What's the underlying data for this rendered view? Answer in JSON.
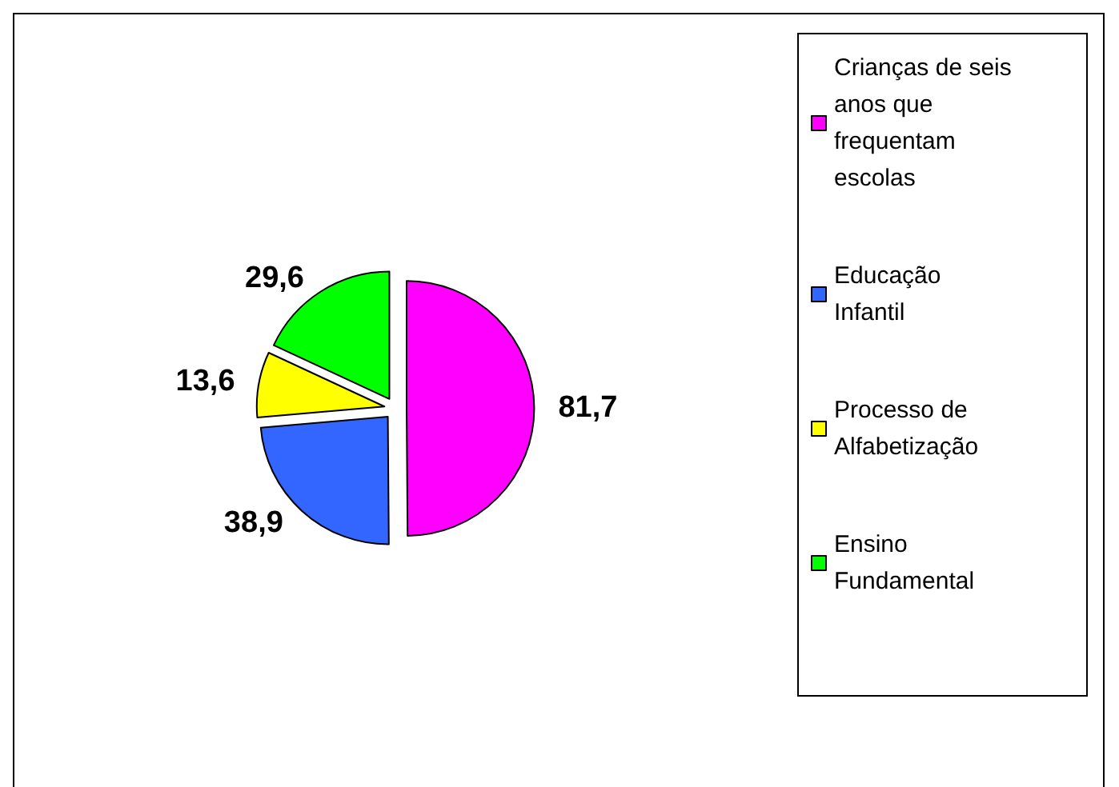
{
  "chart_data": {
    "type": "pie",
    "categories": [
      "Crianças de seis anos que frequentam escolas",
      "Educação Infantil",
      "Processo de Alfabetização",
      "Ensino Fundamental"
    ],
    "values": [
      81.7,
      38.9,
      13.6,
      29.6
    ],
    "value_labels": [
      "81,7",
      "38,9",
      "13,6",
      "29,6"
    ],
    "colors": [
      "#ff00ff",
      "#3366ff",
      "#ffff00",
      "#00ff00"
    ],
    "legend": "right"
  }
}
